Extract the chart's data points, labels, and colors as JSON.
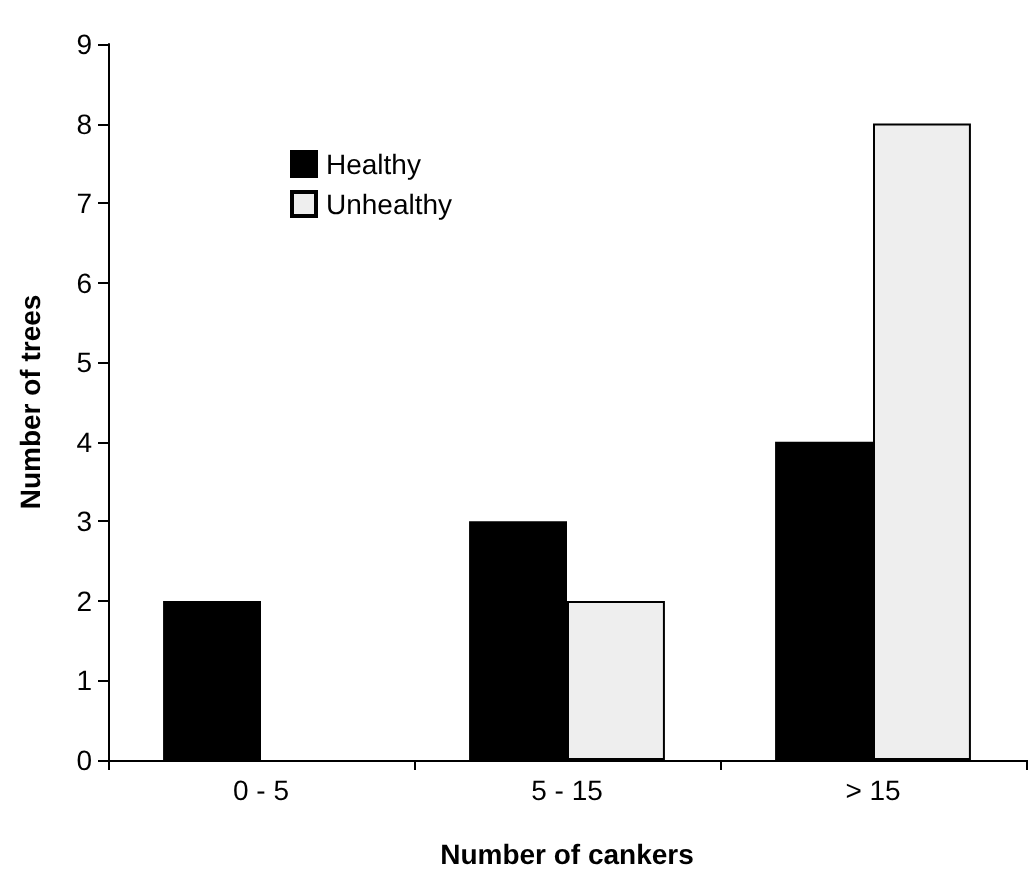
{
  "chart_data": {
    "type": "bar",
    "xlabel": "Number of cankers",
    "ylabel": "Number of trees",
    "categories": [
      "0 - 5",
      "5 - 15",
      "> 15"
    ],
    "series": [
      {
        "name": "Healthy",
        "color": "#000000",
        "values": [
          2,
          3,
          4
        ]
      },
      {
        "name": "Unhealthy",
        "color": "#eeeeee",
        "values": [
          null,
          2,
          8
        ]
      }
    ],
    "ylim": [
      0,
      9
    ],
    "yticks": [
      0,
      1,
      2,
      3,
      4,
      5,
      6,
      7,
      8,
      9
    ],
    "grid": false,
    "legend": "top left"
  }
}
